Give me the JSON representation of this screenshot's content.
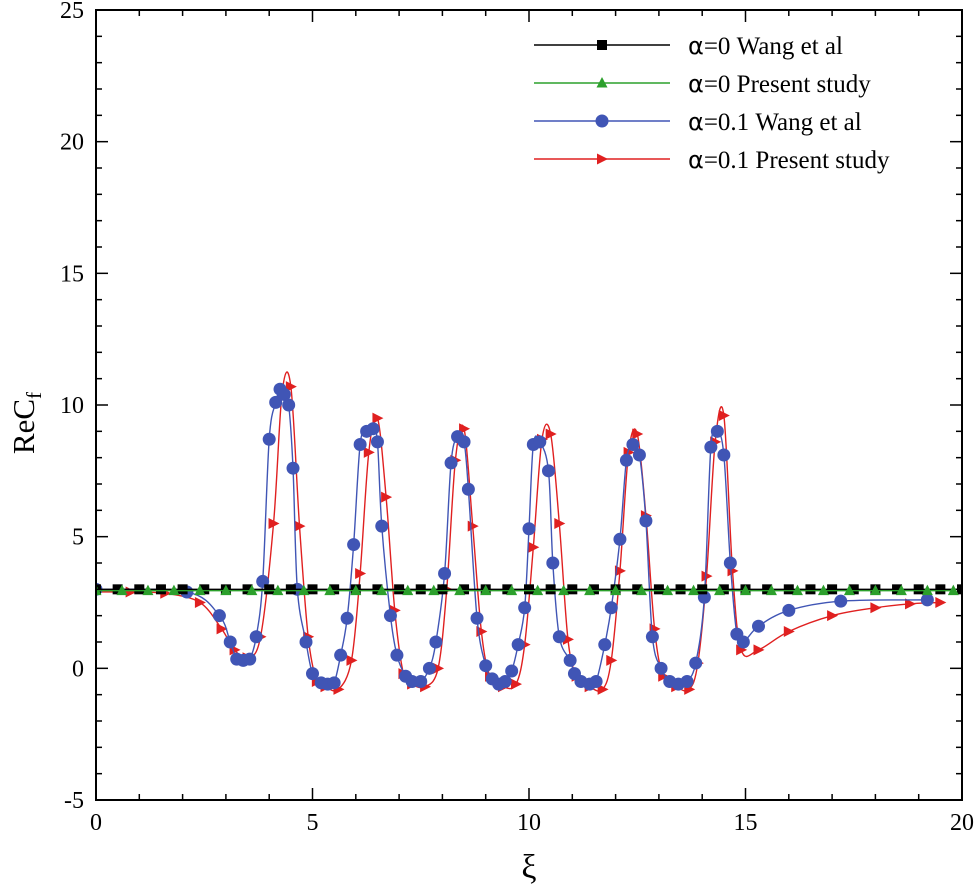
{
  "chart_data": {
    "type": "line",
    "title": "",
    "xlabel": "ξ",
    "ylabel": "ReC",
    "ylabel_subscript": "f",
    "xlim": [
      0,
      20
    ],
    "ylim": [
      -5,
      25
    ],
    "xticks": [
      0,
      5,
      10,
      15,
      20
    ],
    "yticks": [
      -5,
      0,
      5,
      10,
      15,
      20,
      25
    ],
    "xtick_labels": [
      "0",
      "5",
      "10",
      "15",
      "20"
    ],
    "ytick_labels": [
      "-5",
      "0",
      "5",
      "10",
      "15",
      "20",
      "25"
    ],
    "grid": false,
    "legend_position": "top-right",
    "series": [
      {
        "name": "α=0 Wang et al",
        "legend_symbol": "α",
        "legend_text": "=0 Wang et al",
        "color": "#000000",
        "marker": "square",
        "x": [
          0,
          0.5,
          1,
          1.5,
          2,
          2.5,
          3,
          3.5,
          4,
          4.5,
          5,
          5.5,
          6,
          6.5,
          7,
          7.5,
          8,
          8.5,
          9,
          9.5,
          10,
          10.5,
          11,
          11.5,
          12,
          12.5,
          13,
          13.5,
          14,
          14.5,
          15,
          15.5,
          16,
          16.5,
          17,
          17.5,
          18,
          18.5,
          19,
          19.5,
          20
        ],
        "y": [
          3,
          3,
          3,
          3,
          3,
          3,
          3,
          3,
          3,
          3,
          3,
          3,
          3,
          3,
          3,
          3,
          3,
          3,
          3,
          3,
          3,
          3,
          3,
          3,
          3,
          3,
          3,
          3,
          3,
          3,
          3,
          3,
          3,
          3,
          3,
          3,
          3,
          3,
          3,
          3,
          3
        ]
      },
      {
        "name": "α=0 Present study",
        "legend_symbol": "α",
        "legend_text": "=0 Present study",
        "color": "#2ca02c",
        "marker": "triangle",
        "x": [
          0,
          0.6,
          1.2,
          1.8,
          2.4,
          3,
          3.6,
          4.2,
          4.8,
          5.4,
          6,
          6.6,
          7.2,
          7.8,
          8.4,
          9,
          9.6,
          10.2,
          10.8,
          11.4,
          12,
          12.6,
          13.2,
          13.8,
          14.4,
          15,
          15.6,
          16.2,
          16.8,
          17.4,
          18,
          18.6,
          19.2,
          19.8
        ],
        "y": [
          2.95,
          2.95,
          2.95,
          2.95,
          2.95,
          2.95,
          2.95,
          2.95,
          2.95,
          2.95,
          2.95,
          2.95,
          2.95,
          2.95,
          2.95,
          2.95,
          2.95,
          2.95,
          2.95,
          2.95,
          2.95,
          2.95,
          2.95,
          2.95,
          2.95,
          2.95,
          2.95,
          2.95,
          2.95,
          2.95,
          2.95,
          2.95,
          2.95,
          2.95
        ]
      },
      {
        "name": "α=0.1 Wang et al",
        "legend_symbol": "α",
        "legend_text": "=0.1 Wang et al",
        "color": "#4055b5",
        "marker": "circle",
        "x": [
          0,
          2.1,
          2.85,
          3.1,
          3.25,
          3.4,
          3.55,
          3.7,
          3.85,
          4.0,
          4.15,
          4.25,
          4.35,
          4.45,
          4.55,
          4.65,
          4.85,
          5.0,
          5.2,
          5.35,
          5.5,
          5.65,
          5.8,
          5.95,
          6.1,
          6.25,
          6.4,
          6.5,
          6.6,
          6.8,
          6.95,
          7.15,
          7.3,
          7.5,
          7.7,
          7.85,
          8.05,
          8.2,
          8.35,
          8.5,
          8.6,
          8.8,
          9.0,
          9.15,
          9.3,
          9.45,
          9.6,
          9.75,
          9.9,
          10.0,
          10.1,
          10.25,
          10.45,
          10.55,
          10.7,
          10.95,
          11.05,
          11.2,
          11.4,
          11.55,
          11.75,
          11.9,
          12.1,
          12.25,
          12.4,
          12.55,
          12.7,
          12.85,
          13.05,
          13.25,
          13.45,
          13.65,
          13.85,
          14.05,
          14.2,
          14.35,
          14.5,
          14.65,
          14.8,
          14.95,
          15.3,
          16.0,
          17.2,
          19.2
        ],
        "y": [
          3,
          2.9,
          2,
          1,
          0.35,
          0.3,
          0.35,
          1.2,
          3.3,
          8.7,
          10.1,
          10.6,
          10.4,
          10.0,
          7.6,
          3.0,
          1.0,
          -0.2,
          -0.55,
          -0.6,
          -0.55,
          0.5,
          1.9,
          4.7,
          8.5,
          9.0,
          9.1,
          8.6,
          5.4,
          2.0,
          0.5,
          -0.3,
          -0.5,
          -0.5,
          0.0,
          1.0,
          3.6,
          7.8,
          8.8,
          8.6,
          6.8,
          1.9,
          0.1,
          -0.4,
          -0.6,
          -0.5,
          -0.1,
          0.9,
          2.3,
          5.3,
          8.5,
          8.6,
          7.5,
          4.0,
          1.2,
          0.3,
          -0.2,
          -0.5,
          -0.6,
          -0.5,
          0.9,
          2.3,
          4.9,
          7.9,
          8.5,
          8.1,
          5.6,
          1.2,
          0.0,
          -0.5,
          -0.6,
          -0.5,
          0.2,
          2.7,
          8.4,
          9.0,
          8.1,
          4.0,
          1.3,
          1.0,
          1.6,
          2.2,
          2.55,
          2.6
        ]
      },
      {
        "name": "α=0.1 Present study",
        "legend_symbol": "α",
        "legend_text": "=0.1 Present study",
        "color": "#e02020",
        "marker": "triangle-right",
        "x": [
          0,
          0.8,
          1.6,
          2.4,
          2.9,
          3.2,
          3.5,
          3.8,
          4.1,
          4.3,
          4.5,
          4.7,
          4.9,
          5.1,
          5.3,
          5.6,
          5.9,
          6.1,
          6.3,
          6.5,
          6.7,
          6.9,
          7.1,
          7.3,
          7.6,
          7.9,
          8.1,
          8.3,
          8.5,
          8.7,
          8.9,
          9.1,
          9.4,
          9.7,
          9.9,
          10.1,
          10.3,
          10.5,
          10.7,
          10.9,
          11.1,
          11.4,
          11.7,
          11.9,
          12.1,
          12.3,
          12.5,
          12.7,
          12.9,
          13.1,
          13.4,
          13.7,
          13.9,
          14.1,
          14.3,
          14.5,
          14.7,
          14.9,
          15.3,
          16.0,
          17.0,
          18.0,
          18.8,
          19.5
        ],
        "y": [
          2.9,
          2.9,
          2.85,
          2.5,
          1.5,
          0.7,
          0.4,
          1.2,
          5.5,
          10.5,
          10.7,
          5.4,
          1.2,
          -0.5,
          -0.7,
          -0.8,
          0.3,
          3.6,
          8.2,
          9.5,
          6.5,
          2.2,
          -0.2,
          -0.6,
          -0.7,
          0.0,
          3.0,
          7.9,
          9.1,
          5.4,
          1.4,
          -0.3,
          -0.7,
          -0.6,
          0.9,
          4.6,
          8.7,
          8.9,
          5.5,
          1.1,
          -0.3,
          -0.7,
          -0.8,
          0.3,
          3.7,
          8.2,
          8.9,
          5.8,
          1.5,
          -0.3,
          -0.7,
          -0.8,
          0.2,
          3.5,
          8.6,
          9.6,
          3.7,
          0.7,
          0.7,
          1.4,
          2.0,
          2.3,
          2.45,
          2.5
        ]
      }
    ]
  }
}
